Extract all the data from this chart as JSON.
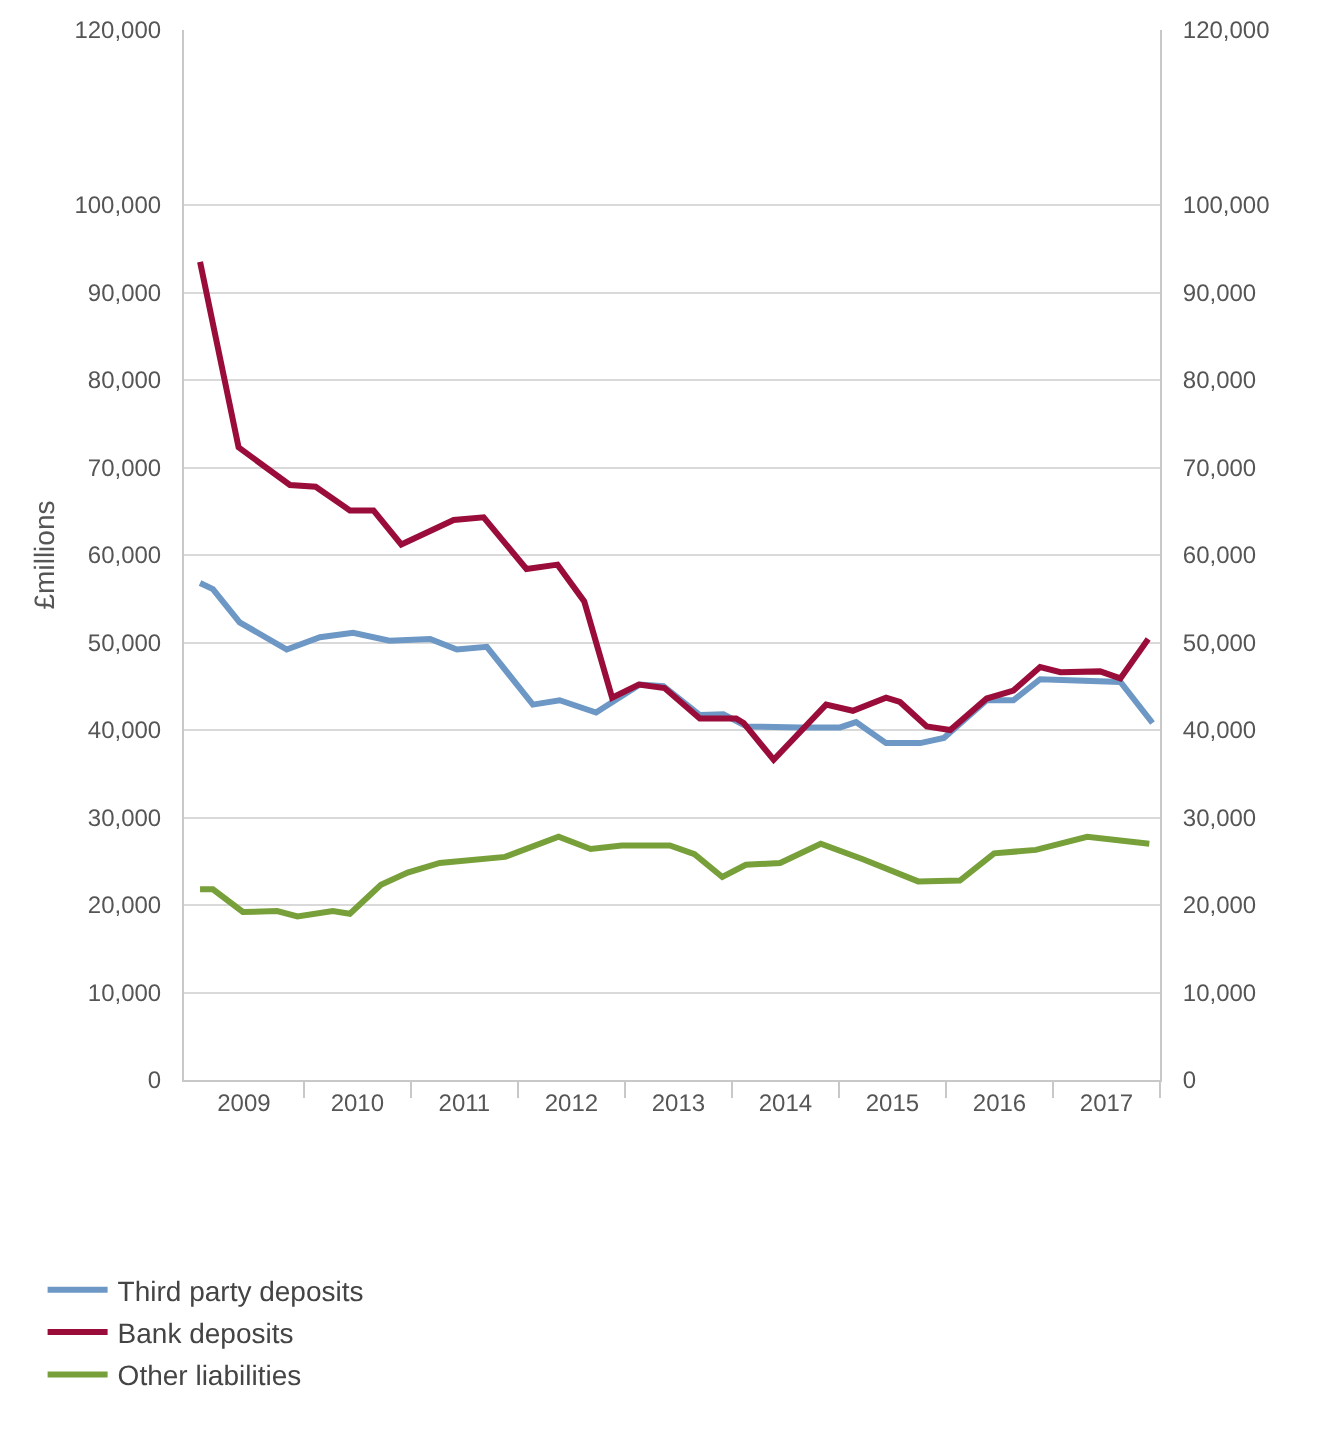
{
  "chart_data": {
    "type": "line",
    "ylabel": "£millions",
    "xlim": [
      2008.88,
      2018
    ],
    "xticks": [
      {
        "value": 2009.44,
        "label": "2009"
      },
      {
        "value": 2010.5,
        "label": "2010"
      },
      {
        "value": 2011.5,
        "label": "2011"
      },
      {
        "value": 2012.5,
        "label": "2012"
      },
      {
        "value": 2013.5,
        "label": "2013"
      },
      {
        "value": 2014.5,
        "label": "2014"
      },
      {
        "value": 2015.5,
        "label": "2015"
      },
      {
        "value": 2016.5,
        "label": "2016"
      },
      {
        "value": 2017.5,
        "label": "2017"
      },
      {
        "value": 2010,
        "label": null
      },
      {
        "value": 2011,
        "label": null
      },
      {
        "value": 2012,
        "label": null
      },
      {
        "value": 2013,
        "label": null
      },
      {
        "value": 2014,
        "label": null
      },
      {
        "value": 2015,
        "label": null
      },
      {
        "value": 2016,
        "label": null
      },
      {
        "value": 2017,
        "label": null
      },
      {
        "value": 2018,
        "label": null
      }
    ],
    "ylim": [
      0,
      120000
    ],
    "yticks": [
      {
        "value": 0,
        "label": "0"
      },
      {
        "value": 10000,
        "label": "10,000"
      },
      {
        "value": 20000,
        "label": "20,000"
      },
      {
        "value": 30000,
        "label": "30,000"
      },
      {
        "value": 40000,
        "label": "40,000"
      },
      {
        "value": 50000,
        "label": "50,000"
      },
      {
        "value": 60000,
        "label": "60,000"
      },
      {
        "value": 70000,
        "label": "70,000"
      },
      {
        "value": 80000,
        "label": "80,000"
      },
      {
        "value": 90000,
        "label": "90,000"
      },
      {
        "value": 100000,
        "label": "100,000"
      },
      {
        "value": 120000,
        "label": "120,000"
      }
    ],
    "y2lim": [
      0,
      120000
    ],
    "y2ticks": [
      {
        "value": 0,
        "label": "0"
      },
      {
        "value": 10000,
        "label": "10,000"
      },
      {
        "value": 20000,
        "label": "20,000"
      },
      {
        "value": 30000,
        "label": "30,000"
      },
      {
        "value": 40000,
        "label": "40,000"
      },
      {
        "value": 50000,
        "label": "50,000"
      },
      {
        "value": 60000,
        "label": "60,000"
      },
      {
        "value": 70000,
        "label": "70,000"
      },
      {
        "value": 80000,
        "label": "80,000"
      },
      {
        "value": 90000,
        "label": "90,000"
      },
      {
        "value": 100000,
        "label": "100,000"
      },
      {
        "value": 120000,
        "label": "120,000"
      }
    ],
    "grid": "y",
    "legend": "bottom",
    "line_style": "solid",
    "marker": "none",
    "series": [
      {
        "name": "Third party deposits",
        "color": "#6d97c4",
        "x": [
          2009.03,
          2009.15,
          2009.4,
          2009.84,
          2010.15,
          2010.46,
          2010.8,
          2011.18,
          2011.43,
          2011.71,
          2012.14,
          2012.39,
          2012.73,
          2013.14,
          2013.36,
          2013.7,
          2013.92,
          2014.14,
          2014.64,
          2015.01,
          2015.16,
          2015.44,
          2015.76,
          2015.98,
          2016.38,
          2016.63,
          2016.88,
          2017.63,
          2017.93
        ],
        "values": [
          56800,
          56100,
          52300,
          49200,
          50600,
          51100,
          50200,
          50400,
          49200,
          49500,
          42900,
          43400,
          42000,
          45200,
          45000,
          41700,
          41800,
          40400,
          40300,
          40300,
          40900,
          38500,
          38500,
          39100,
          43400,
          43400,
          45800,
          45500,
          40800
        ]
      },
      {
        "name": "Bank deposits",
        "color": "#9a0d3a",
        "x": [
          2009.03,
          2009.39,
          2009.87,
          2010.11,
          2010.43,
          2010.65,
          2010.91,
          2011.4,
          2011.68,
          2012.08,
          2012.37,
          2012.62,
          2012.88,
          2013.13,
          2013.37,
          2013.7,
          2014.04,
          2014.11,
          2014.39,
          2014.88,
          2015.13,
          2015.44,
          2015.57,
          2015.82,
          2016.04,
          2016.38,
          2016.63,
          2016.88,
          2017.07,
          2017.44,
          2017.63,
          2017.89
        ],
        "values": [
          93500,
          72300,
          68000,
          67800,
          65100,
          65100,
          61200,
          64000,
          64300,
          58400,
          58900,
          54700,
          43700,
          45200,
          44800,
          41300,
          41300,
          40800,
          36600,
          42900,
          42200,
          43700,
          43200,
          40400,
          40000,
          43600,
          44500,
          47200,
          46600,
          46700,
          45900,
          50400
        ]
      },
      {
        "name": "Other liabilities",
        "color": "#77a03a",
        "x": [
          2009.03,
          2009.15,
          2009.43,
          2009.75,
          2009.94,
          2010.27,
          2010.43,
          2010.72,
          2010.97,
          2011.27,
          2011.88,
          2012.38,
          2012.68,
          2012.97,
          2013.42,
          2013.65,
          2013.91,
          2014.13,
          2014.45,
          2014.83,
          2015.23,
          2015.74,
          2016.13,
          2016.45,
          2016.84,
          2017.32,
          2017.9
        ],
        "values": [
          21800,
          21800,
          19200,
          19300,
          18700,
          19300,
          19000,
          22300,
          23700,
          24800,
          25500,
          27800,
          26400,
          26800,
          26800,
          25800,
          23200,
          24600,
          24800,
          27000,
          25200,
          22700,
          22800,
          25900,
          26300,
          27800,
          27000
        ]
      }
    ]
  }
}
